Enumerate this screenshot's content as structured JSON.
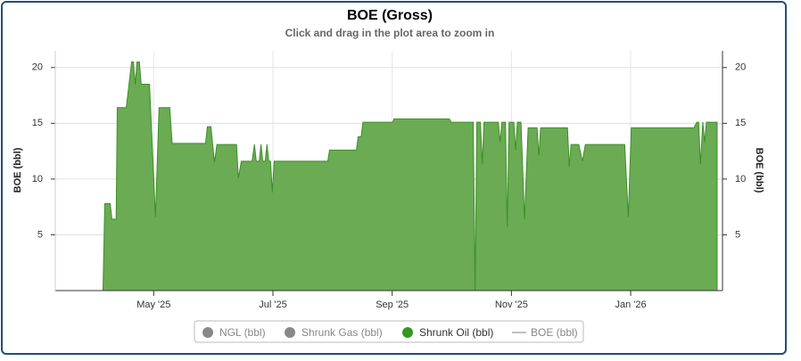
{
  "chart_data": {
    "type": "area",
    "title": "BOE (Gross)",
    "subtitle": "Click and drag in the plot area to zoom in",
    "y_label": "BOE (bbl)",
    "y2_label": "BOE (bbl)",
    "xlim": [
      3.35,
      14.54
    ],
    "xticks": [
      {
        "value": 5,
        "label": "May '25"
      },
      {
        "value": 7,
        "label": "Jul '25"
      },
      {
        "value": 9,
        "label": "Sep '25"
      },
      {
        "value": 11,
        "label": "Nov '25"
      },
      {
        "value": 13,
        "label": "Jan '26"
      }
    ],
    "ylim": [
      0,
      21.5
    ],
    "yticks": [
      5,
      10,
      15,
      20
    ],
    "y2lim": [
      0,
      21.5
    ],
    "y2ticks": [
      5,
      10,
      15,
      20
    ],
    "grid": true,
    "legend": [
      {
        "name": "NGL (bbl)",
        "color": "#888888",
        "visible": false,
        "symbol": "circle"
      },
      {
        "name": "Shrunk Gas (bbl)",
        "color": "#888888",
        "visible": false,
        "symbol": "circle"
      },
      {
        "name": "Shrunk Oil (bbl)",
        "color": "#339922",
        "visible": true,
        "symbol": "circle"
      },
      {
        "name": "BOE (bbl)",
        "color": "#aaaaaa",
        "visible": false,
        "symbol": "line"
      }
    ],
    "series": [
      {
        "name": "Shrunk Oil (bbl)",
        "color": "#6aab53",
        "line_color": "#3d8f27",
        "x": [
          3.43,
          4.15,
          4.18,
          4.27,
          4.3,
          4.37,
          4.39,
          4.54,
          4.63,
          4.66,
          4.69,
          4.72,
          4.76,
          4.79,
          4.93,
          5.03,
          5.09,
          5.27,
          5.31,
          5.87,
          5.9,
          5.96,
          6.02,
          6.06,
          6.39,
          6.42,
          6.47,
          6.65,
          6.69,
          6.72,
          6.77,
          6.8,
          6.83,
          6.87,
          6.9,
          6.93,
          6.96,
          6.99,
          7.02,
          7.92,
          7.95,
          8.4,
          8.43,
          8.48,
          8.51,
          9.01,
          9.03,
          9.96,
          9.99,
          10.36,
          10.39,
          10.42,
          10.48,
          10.51,
          10.54,
          10.78,
          10.81,
          10.84,
          10.9,
          10.93,
          10.96,
          11.04,
          11.07,
          11.1,
          11.16,
          11.22,
          11.28,
          11.43,
          11.46,
          11.49,
          11.94,
          11.97,
          12.0,
          12.13,
          12.19,
          12.24,
          12.9,
          12.96,
          13.01,
          14.06,
          14.11,
          14.14,
          14.17,
          14.21,
          14.24,
          14.27,
          14.45
        ],
        "values": [
          0,
          0,
          7.8,
          7.8,
          6.4,
          6.4,
          16.4,
          16.4,
          20.5,
          20.5,
          18.5,
          20.5,
          20.5,
          18.5,
          18.5,
          6.6,
          16.4,
          16.4,
          13.2,
          13.2,
          14.7,
          14.7,
          11.5,
          13.1,
          13.1,
          10.1,
          11.6,
          11.6,
          13.1,
          11.6,
          11.6,
          13.1,
          11.6,
          11.6,
          13.1,
          11.6,
          11.6,
          8.8,
          11.6,
          11.6,
          12.6,
          12.6,
          13.8,
          13.8,
          15.1,
          15.1,
          15.4,
          15.4,
          15.1,
          15.1,
          0,
          15.1,
          15.1,
          11.3,
          15.1,
          15.1,
          13.3,
          15.1,
          15.1,
          5.7,
          15.1,
          15.1,
          12.6,
          15.1,
          15.1,
          6.4,
          14.6,
          14.6,
          12.1,
          14.6,
          14.6,
          11.1,
          13.1,
          13.1,
          11.6,
          13.1,
          13.1,
          6.6,
          14.6,
          14.6,
          15.1,
          15.1,
          11.3,
          15.1,
          13.3,
          15.1,
          15.1
        ]
      }
    ]
  }
}
